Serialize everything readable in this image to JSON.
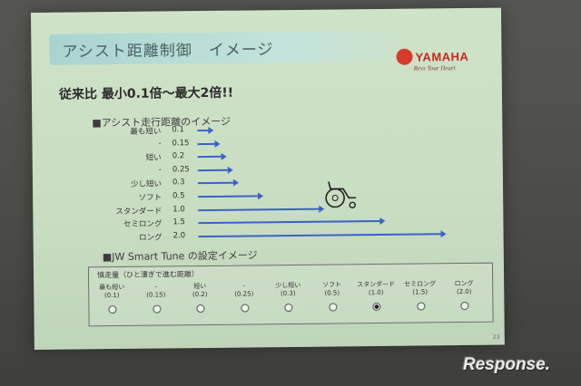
{
  "slide": {
    "title": "アシスト距離制御　イメージ",
    "logo_text": "YAMAHA",
    "logo_tagline": "Revs Your Heart",
    "headline": "従来比 最小0.1倍～最大2倍!!",
    "section1_heading": "■アシスト走行距離のイメージ",
    "section2_heading": "■JW Smart Tune の設定イメージ",
    "page_number": "23"
  },
  "chart_data": {
    "type": "bar",
    "orientation": "horizontal",
    "categories": [
      "最も短い",
      "-",
      "短い",
      "-",
      "少し短い",
      "ソフト",
      "スタンダード",
      "セミロング",
      "ロング"
    ],
    "values": [
      0.1,
      0.15,
      0.2,
      0.25,
      0.3,
      0.5,
      1.0,
      1.5,
      2.0
    ],
    "value_labels": [
      "0.1",
      "0.15",
      "0.2",
      "0.25",
      "0.3",
      "0.5",
      "1.0",
      "1.5",
      "2.0"
    ],
    "marker_color": "#3a63c9",
    "xlim": [
      0,
      2.0
    ]
  },
  "tune": {
    "caption": "慎走量（ひと漕ぎで進む距離）",
    "options": [
      {
        "label": "最も短い",
        "value": "(0.1)",
        "selected": false
      },
      {
        "label": "-",
        "value": "(0.15)",
        "selected": false
      },
      {
        "label": "短い",
        "value": "(0.2)",
        "selected": false
      },
      {
        "label": "-",
        "value": "(0.25)",
        "selected": false
      },
      {
        "label": "少し短い",
        "value": "(0.3)",
        "selected": false
      },
      {
        "label": "ソフト",
        "value": "(0.5)",
        "selected": false
      },
      {
        "label": "スタンダード",
        "value": "(1.0)",
        "selected": true
      },
      {
        "label": "セミロング",
        "value": "(1.5)",
        "selected": false
      },
      {
        "label": "ロング",
        "value": "(2.0)",
        "selected": false
      }
    ]
  },
  "watermark": "Response."
}
